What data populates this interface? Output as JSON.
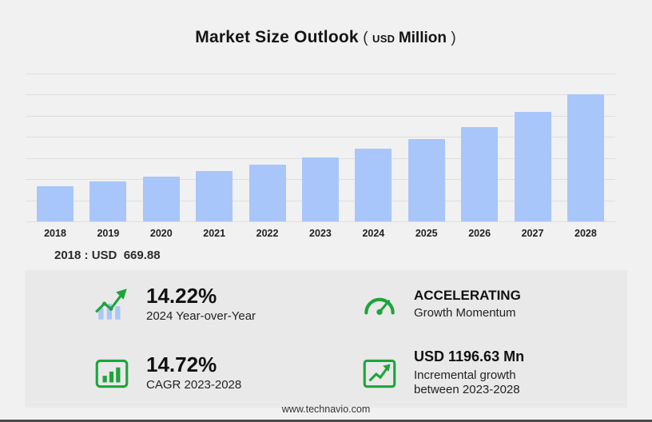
{
  "page": {
    "footer_url": "www.technavio.com"
  },
  "title": {
    "main": "Market Size Outlook",
    "paren_open": "(",
    "currency": "USD",
    "unit": "Million",
    "paren_close": ")"
  },
  "chart_data": {
    "type": "bar",
    "title": "Market Size Outlook (USD Million)",
    "categories": [
      "2018",
      "2019",
      "2020",
      "2021",
      "2022",
      "2023",
      "2024",
      "2025",
      "2026",
      "2027",
      "2028"
    ],
    "values": [
      669.88,
      760,
      855,
      960,
      1075,
      1212,
      1385,
      1560,
      1790,
      2070,
      2409
    ],
    "xlabel": "",
    "ylabel": "",
    "ylim": [
      0,
      2800
    ],
    "grid": true,
    "gridline_count": 8,
    "legend": "none",
    "bar_color": "#a8c6fa"
  },
  "annotation": {
    "text": "2018 : USD  669.88"
  },
  "stats": {
    "yoy": {
      "value": "14.22%",
      "label": "2024 Year-over-Year"
    },
    "momentum": {
      "title": "ACCELERATING",
      "label": "Growth Momentum"
    },
    "cagr": {
      "value": "14.72%",
      "label": "CAGR 2023-2028"
    },
    "incremental": {
      "amount": "USD 1196.63 Mn",
      "label": "Incremental growth between 2023-2028"
    }
  },
  "colors": {
    "bar": "#a8c6fa",
    "accent_green": "#1ea43b",
    "panel": "#e9e9e9",
    "background": "#f1f1f1",
    "gridline": "#dedede"
  }
}
